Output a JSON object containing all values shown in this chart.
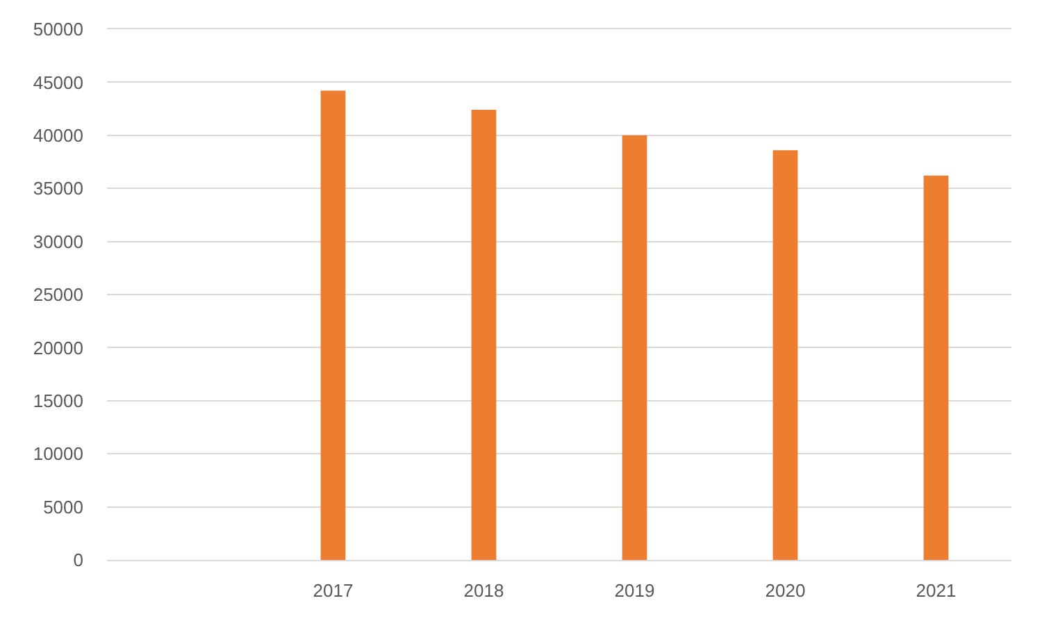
{
  "chart_data": {
    "type": "bar",
    "categories": [
      null,
      "2017",
      "2018",
      "2019",
      "2020",
      "2021"
    ],
    "values": [
      null,
      44200,
      42400,
      40000,
      38600,
      36200
    ],
    "color": "#ed7d31",
    "ylim": [
      0,
      50000
    ],
    "yticks": [
      0,
      5000,
      10000,
      15000,
      20000,
      25000,
      30000,
      35000,
      40000,
      45000,
      50000
    ],
    "grid": "y"
  }
}
